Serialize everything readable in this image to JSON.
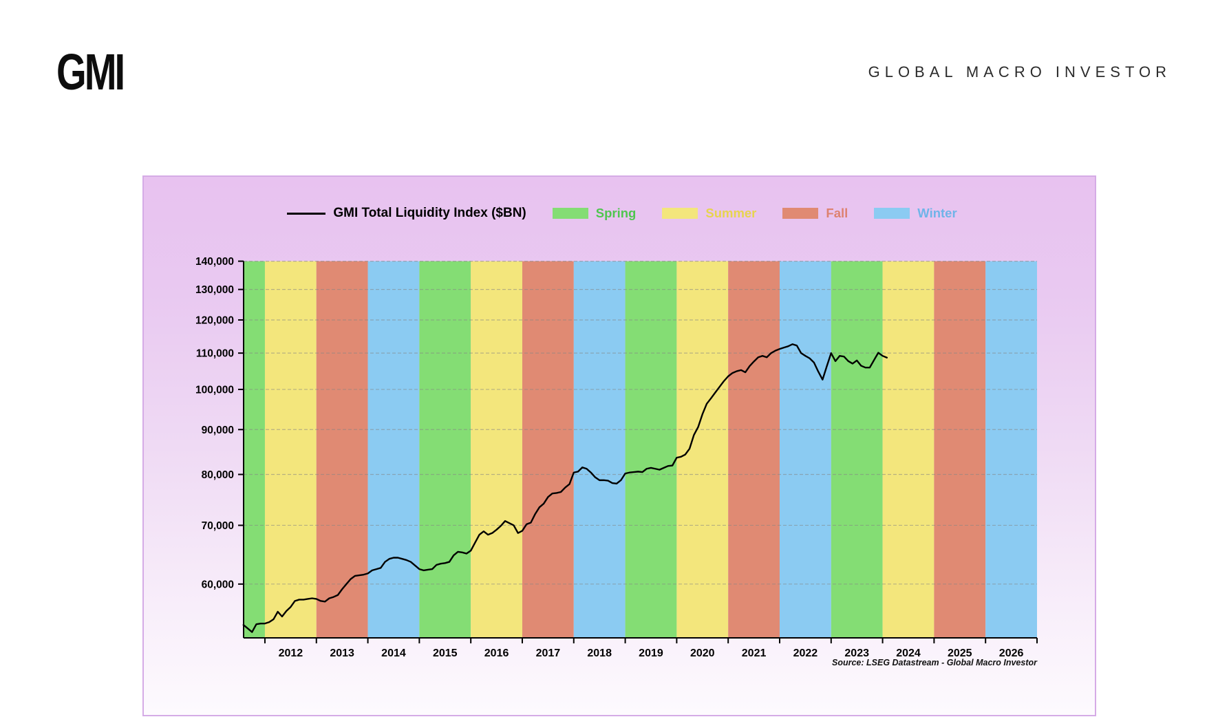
{
  "header": {
    "logo_text": "GMI",
    "brand_text": "GLOBAL MACRO INVESTOR"
  },
  "chart_data": {
    "type": "line",
    "title": "GMI Total Liquidity Index ($BN)",
    "legend": {
      "series_label": "GMI Total Liquidity Index ($BN)",
      "seasons": [
        {
          "label": "Spring",
          "color": "#84dd74",
          "text_color": "#4fc64f"
        },
        {
          "label": "Summer",
          "color": "#f3e67c",
          "text_color": "#e7d44e"
        },
        {
          "label": "Fall",
          "color": "#e08a73",
          "text_color": "#dd8270"
        },
        {
          "label": "Winter",
          "color": "#8bcbf2",
          "text_color": "#6fb4e8"
        }
      ]
    },
    "series_name": "GMI Total Liquidity Index ($BN)",
    "line_color": "#000000",
    "y_scale": "log",
    "ylim": [
      52100,
      140000
    ],
    "xlim": [
      2011.586,
      2027.0
    ],
    "y_ticks": [
      60000,
      70000,
      80000,
      90000,
      100000,
      110000,
      120000,
      130000,
      140000
    ],
    "x_tick_years": [
      2012,
      2013,
      2014,
      2015,
      2016,
      2017,
      2018,
      2019,
      2020,
      2021,
      2022,
      2023,
      2024,
      2025,
      2026,
      2027
    ],
    "x_labels": [
      "2012",
      "2013",
      "2014",
      "2015",
      "2016",
      "2017",
      "2018",
      "2019",
      "2020",
      "2021",
      "2022",
      "2023",
      "2024",
      "2025",
      "2026"
    ],
    "grid": true,
    "season_colors": {
      "Spring": "#84dd74",
      "Summer": "#f3e67c",
      "Fall": "#e08a73",
      "Winter": "#8bcbf2"
    },
    "bands": [
      {
        "season": "Spring",
        "from": 2011.586,
        "to": 2012
      },
      {
        "season": "Summer",
        "from": 2012,
        "to": 2013
      },
      {
        "season": "Fall",
        "from": 2013,
        "to": 2014
      },
      {
        "season": "Winter",
        "from": 2014,
        "to": 2015
      },
      {
        "season": "Spring",
        "from": 2015,
        "to": 2016
      },
      {
        "season": "Summer",
        "from": 2016,
        "to": 2017
      },
      {
        "season": "Fall",
        "from": 2017,
        "to": 2018
      },
      {
        "season": "Winter",
        "from": 2018,
        "to": 2019
      },
      {
        "season": "Spring",
        "from": 2019,
        "to": 2020
      },
      {
        "season": "Summer",
        "from": 2020,
        "to": 2021
      },
      {
        "season": "Fall",
        "from": 2021,
        "to": 2022
      },
      {
        "season": "Winter",
        "from": 2022,
        "to": 2023
      },
      {
        "season": "Spring",
        "from": 2023,
        "to": 2024
      },
      {
        "season": "Summer",
        "from": 2024,
        "to": 2025
      },
      {
        "season": "Fall",
        "from": 2025,
        "to": 2026
      },
      {
        "season": "Winter",
        "from": 2026,
        "to": 2027
      }
    ],
    "series_start": {
      "year": 2011,
      "month": 8
    },
    "monthly_values": [
      53900,
      53400,
      52900,
      54000,
      54100,
      54100,
      54300,
      54700,
      55800,
      55100,
      55900,
      56500,
      57400,
      57600,
      57600,
      57700,
      57800,
      57700,
      57400,
      57300,
      57800,
      58000,
      58300,
      59200,
      60000,
      60800,
      61300,
      61400,
      61500,
      61700,
      62200,
      62400,
      62600,
      63600,
      64100,
      64300,
      64300,
      64100,
      63900,
      63600,
      63000,
      62400,
      62200,
      62300,
      62400,
      63100,
      63300,
      63400,
      63600,
      64700,
      65300,
      65200,
      65000,
      65500,
      66900,
      68300,
      68900,
      68300,
      68600,
      69200,
      69900,
      70800,
      70400,
      70000,
      68600,
      69000,
      70200,
      70500,
      72100,
      73400,
      74100,
      75400,
      76100,
      76200,
      76400,
      77300,
      78000,
      80400,
      80600,
      81500,
      81200,
      80400,
      79400,
      78800,
      78800,
      78700,
      78200,
      78100,
      78800,
      80200,
      80400,
      80500,
      80600,
      80500,
      81200,
      81400,
      81200,
      81000,
      81400,
      81800,
      81900,
      83600,
      83800,
      84300,
      85600,
      88700,
      90600,
      93700,
      96300,
      97700,
      99200,
      100700,
      102200,
      103500,
      104400,
      104900,
      105200,
      104600,
      106300,
      107600,
      108800,
      109200,
      108800,
      110000,
      110700,
      111200,
      111600,
      112000,
      112600,
      112200,
      110000,
      109200,
      108500,
      107300,
      104800,
      102600,
      106300,
      110000,
      107700,
      109200,
      109000,
      107700,
      107000,
      107900,
      106400,
      105900,
      105900,
      108000,
      110100,
      109200,
      108700
    ],
    "source": "Source: LSEG Datastream - Global Macro Investor"
  }
}
